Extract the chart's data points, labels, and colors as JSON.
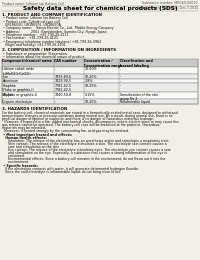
{
  "background_color": "#f0efe8",
  "header_left": "Product name: Lithium Ion Battery Cell",
  "header_right": "Substance number: MR049-00010\nEstablishment / Revision: Dec.7,2010",
  "title": "Safety data sheet for chemical products (SDS)",
  "s1_title": "1. PRODUCT AND COMPANY IDENTIFICATION",
  "s1_lines": [
    " • Product name: Lithium Ion Battery Cell",
    " • Product code: Cylindrical-type cell",
    "   UR18650U, UR18650L, UR18650A",
    " • Company name:    Sanyo Electric Co., Ltd.  Mobile Energy Company",
    " • Address:           2001  Kamishinden, Sumoto-City, Hyogo, Japan",
    " • Telephone number:   +81-799-26-4111",
    " • Fax number:   +81-799-26-4121",
    " • Emergency telephone number (daytime) +81-799-26-3962",
    "   (Night and holiday) +81-799-26-4101"
  ],
  "s2_title": "2. COMPOSITION / INFORMATION ON INGREDIENTS",
  "s2_lines": [
    " • Substance or preparation: Preparation",
    " • Information about the chemical nature of product:"
  ],
  "tbl_headers": [
    "Component/chemical name",
    "CAS number",
    "Concentration /\nConcentration range",
    "Classification and\nhazard labeling"
  ],
  "tbl_rows": [
    [
      "Lithium cobalt oxide\n(LiMnO2(LiCoO2))",
      "-",
      "30-60%",
      "-"
    ],
    [
      "Iron",
      "7439-89-6",
      "10-20%",
      "-"
    ],
    [
      "Aluminum",
      "7429-90-5",
      "2-8%",
      "-"
    ],
    [
      "Graphite\n(Flake or graphite-I)\n(Al-flake or graphite-I)",
      "7782-42-5\n7782-42-5",
      "10-25%",
      "-"
    ],
    [
      "Copper",
      "7440-50-8",
      "5-15%",
      "Sensitization of the skin\ngroup No.2"
    ],
    [
      "Organic electrolyte",
      "-",
      "10-20%",
      "Inflammable liquid"
    ]
  ],
  "s3_title": "3. HAZARDS IDENTIFICATION",
  "s3_body": [
    "For the battery cell, chemical materials are stored in a hermetically-sealed metal case, designed to withstand",
    "temperatures changes or pressure-variations during normal use. As a result, during normal use, there is no",
    "physical danger of ignition or explosion and there is no danger of hazardous materials leakage.",
    "  However, if exposed to a fire, added mechanical shocks, decomposes, enters electric wires or may cause fire,",
    "gas release cannot be operated. The battery cell case will be breached at fire patterns. Hazardous",
    "materials may be released.",
    "  Moreover, if heated strongly by the surrounding fire, acid gas may be emitted."
  ],
  "s3_bullet1": " • Most important hazard and effects:",
  "s3_health": "   Human health effects:",
  "s3_health_lines": [
    "      Inhalation: The release of the electrolyte has an anesthesia action and stimulates a respiratory tract.",
    "      Skin contact: The release of the electrolyte stimulates a skin. The electrolyte skin contact causes a",
    "      sore and stimulation on the skin.",
    "      Eye contact: The release of the electrolyte stimulates eyes. The electrolyte eye contact causes a sore",
    "      and stimulation on the eye. Especially, a substance that causes a strong inflammation of the eye is",
    "      contained.",
    "      Environmental effects: Since a battery cell remains in the environment, do not throw out it into the",
    "      environment."
  ],
  "s3_bullet2": " • Specific hazards:",
  "s3_specific": [
    "   If the electrolyte contacts with water, it will generate detrimental hydrogen fluoride.",
    "   Since the said electrolyte is inflammable liquid, do not bring close to fire."
  ]
}
